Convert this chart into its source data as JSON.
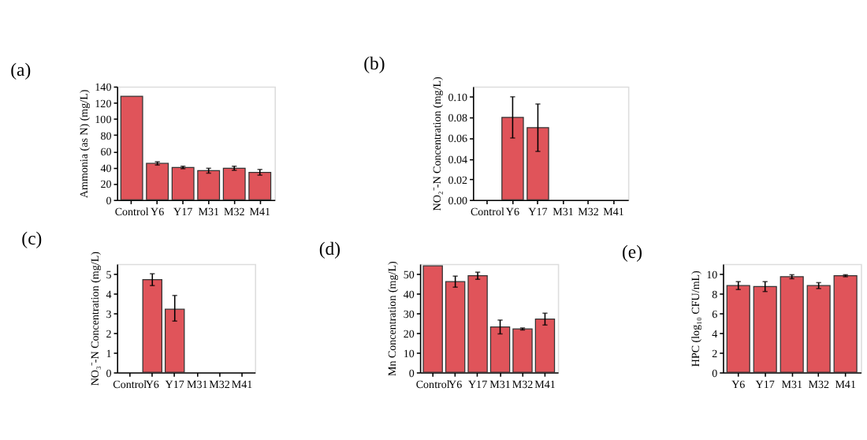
{
  "chart_data": [
    {
      "type": "bar",
      "title": "(a)",
      "ylabel": "Ammonia (as N)  (mg/L)",
      "categories": [
        "Control",
        "Y6",
        "Y17",
        "M31",
        "M32",
        "M41"
      ],
      "values": [
        128,
        45,
        40,
        36,
        39,
        34
      ],
      "errors": [
        null,
        2,
        1.5,
        3,
        2.5,
        3.5
      ],
      "color": "#e0545a",
      "ylim": [
        0,
        140
      ],
      "yticks": [
        0,
        20,
        40,
        60,
        80,
        100,
        120,
        140
      ]
    },
    {
      "type": "bar",
      "title": "(b)",
      "ylabel": "NO₂⁻-N Concentration (mg/L)",
      "categories": [
        "Control",
        "Y6",
        "Y17",
        "M31",
        "M32",
        "M41"
      ],
      "values": [
        null,
        0.08,
        0.07,
        null,
        null,
        null
      ],
      "errors": [
        null,
        0.02,
        [
          0.047,
          0.093
        ],
        null,
        null,
        null
      ],
      "color": "#e0545a",
      "ylim": [
        0,
        0.11
      ],
      "yticks": [
        {
          "value": 0,
          "label": "0.00"
        },
        {
          "value": 0.02,
          "label": "0.02"
        },
        {
          "value": 0.04,
          "label": "0.04"
        },
        {
          "value": 0.06,
          "label": "0.06"
        },
        {
          "value": 0.08,
          "label": "0.08"
        },
        {
          "value": 0.1,
          "label": "0.10"
        }
      ]
    },
    {
      "type": "bar",
      "title": "(c)",
      "ylabel": "NO₃⁻-N Concentration (mg/L)",
      "categories": [
        "Control",
        "Y6",
        "Y17",
        "M31",
        "M32",
        "M41"
      ],
      "values": [
        null,
        4.7,
        3.2,
        null,
        null,
        null
      ],
      "errors": [
        null,
        [
          4.4,
          5.0
        ],
        [
          2.6,
          3.9
        ],
        null,
        null,
        null
      ],
      "color": "#e0545a",
      "ylim": [
        0,
        5.5
      ],
      "yticks": [
        0,
        1,
        2,
        3,
        4,
        5
      ]
    },
    {
      "type": "bar",
      "title": "(d)",
      "ylabel": "Mn Concentration (mg/L)",
      "categories": [
        "Control",
        "Y6",
        "Y17",
        "M31",
        "M32",
        "M41"
      ],
      "values": [
        54,
        46,
        49,
        23,
        22,
        27
      ],
      "errors": [
        null,
        2.8,
        1.8,
        3.5,
        0.5,
        3
      ],
      "color": "#e0545a",
      "ylim": [
        0,
        55
      ],
      "yticks": [
        0,
        10,
        20,
        30,
        40,
        50
      ]
    },
    {
      "type": "bar",
      "title": "(e)",
      "ylabel": "HPC (log₁₀ CFU/mL)",
      "categories": [
        "Y6",
        "Y17",
        "M31",
        "M32",
        "M41"
      ],
      "values": [
        8.8,
        8.7,
        9.7,
        8.8,
        9.8
      ],
      "errors": [
        0.4,
        0.5,
        0.2,
        0.3,
        0.1
      ],
      "color": "#e0545a",
      "ylim": [
        0,
        11
      ],
      "yticks": [
        0,
        2,
        4,
        6,
        8,
        10
      ]
    }
  ]
}
